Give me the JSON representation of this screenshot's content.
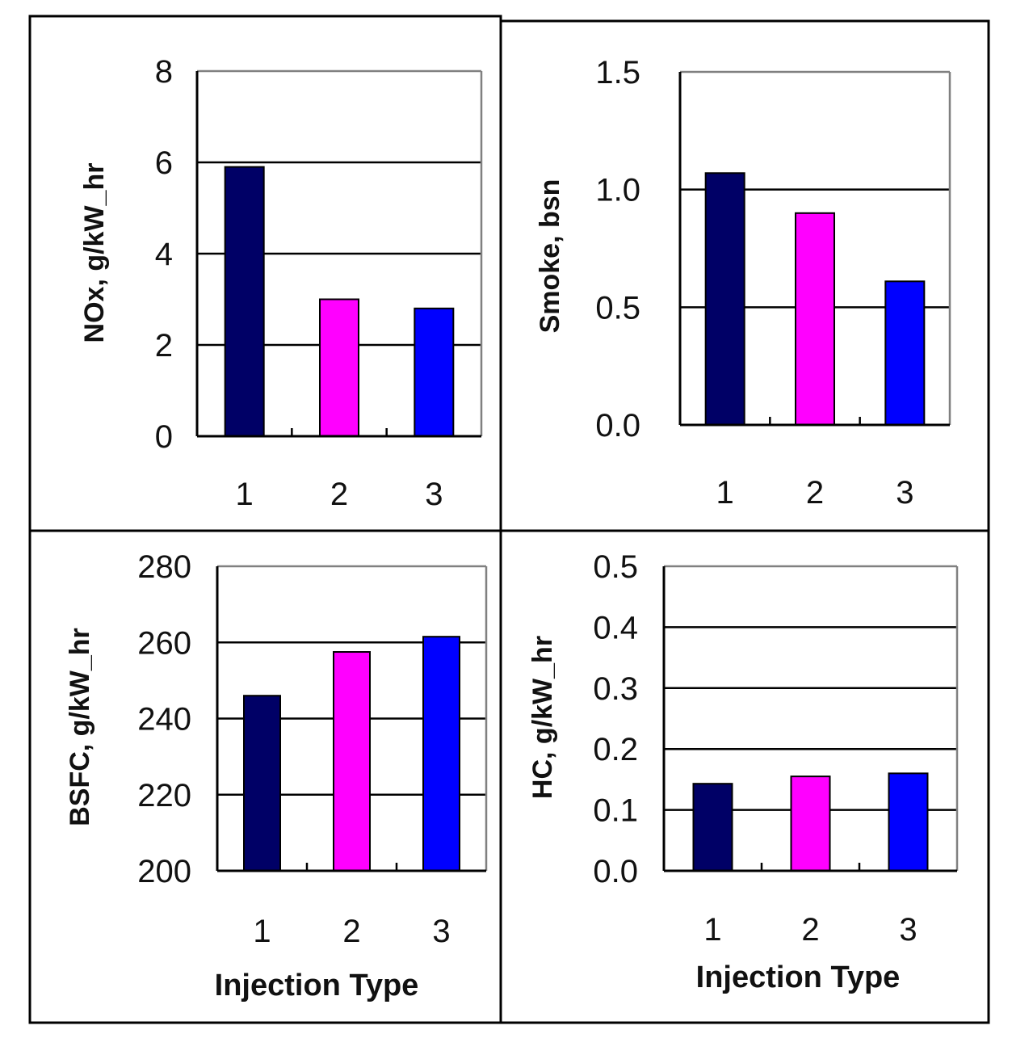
{
  "colors": {
    "series": [
      "#000066",
      "#ff00ff",
      "#0000ff"
    ],
    "grid": "#000000",
    "frame": "#808080"
  },
  "chart_data": [
    {
      "type": "bar",
      "categories": [
        "1",
        "2",
        "3"
      ],
      "values": [
        5.9,
        3.0,
        2.8
      ],
      "ylabel": "NOx, g/kW_hr",
      "xlabel": "",
      "ylim": [
        0,
        8
      ],
      "yticks": [
        "0",
        "2",
        "4",
        "6",
        "8"
      ],
      "grid": true
    },
    {
      "type": "bar",
      "categories": [
        "1",
        "2",
        "3"
      ],
      "values": [
        1.07,
        0.9,
        0.61
      ],
      "ylabel": "Smoke, bsn",
      "xlabel": "",
      "ylim": [
        0,
        1.5
      ],
      "yticks": [
        "0.0",
        "0.5",
        "1.0",
        "1.5"
      ],
      "grid": true
    },
    {
      "type": "bar",
      "categories": [
        "1",
        "2",
        "3"
      ],
      "values": [
        246,
        257.5,
        261.5
      ],
      "ylabel": "BSFC, g/kW_hr",
      "xlabel": "Injection Type",
      "ylim": [
        200,
        280
      ],
      "yticks": [
        "200",
        "220",
        "240",
        "260",
        "280"
      ],
      "grid": true
    },
    {
      "type": "bar",
      "categories": [
        "1",
        "2",
        "3"
      ],
      "values": [
        0.143,
        0.155,
        0.16
      ],
      "ylabel": "HC, g/kW_hr",
      "xlabel": "Injection Type",
      "ylim": [
        0,
        0.5
      ],
      "yticks": [
        "0.0",
        "0.1",
        "0.2",
        "0.3",
        "0.4",
        "0.5"
      ],
      "grid": true
    }
  ]
}
